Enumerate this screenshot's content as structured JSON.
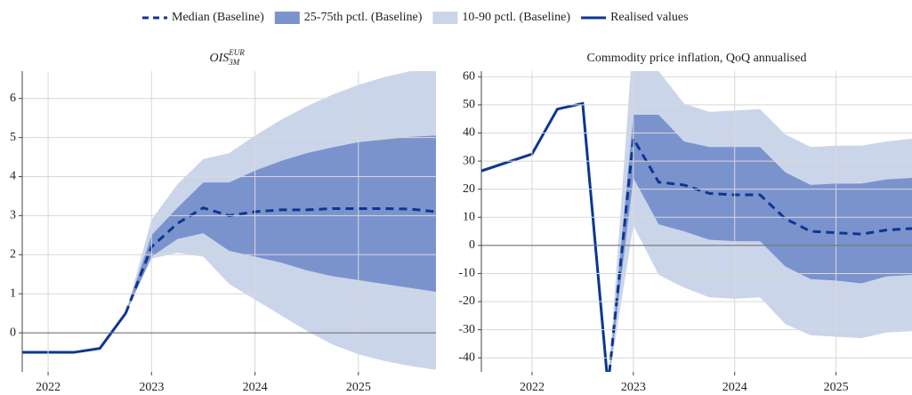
{
  "legend": {
    "position": "top"
  },
  "chart_data": [
    {
      "type": "fan",
      "title_main": "OIS",
      "title_sup": "EUR",
      "title_sub": "3M",
      "xlim": [
        2021.75,
        2025.75
      ],
      "ylim": [
        -1,
        6.7
      ],
      "xticks": [
        2022,
        2023,
        2024,
        2025
      ],
      "yticks": [
        0,
        1,
        2,
        3,
        4,
        5,
        6
      ],
      "grid": true,
      "series": [
        {
          "name": "Median (Baseline)",
          "kind": "dashed",
          "color": "#0d3692",
          "x": [
            2022.75,
            2023,
            2023.25,
            2023.5,
            2023.75,
            2024,
            2024.25,
            2024.5,
            2024.75,
            2025,
            2025.25,
            2025.5,
            2025.75
          ],
          "values": [
            0.5,
            2.2,
            2.8,
            3.2,
            3.0,
            3.1,
            3.15,
            3.15,
            3.18,
            3.18,
            3.18,
            3.17,
            3.1
          ]
        },
        {
          "name": "25-75th pctl. (Baseline)",
          "kind": "band",
          "color": "#7b93cd",
          "x": [
            2022.75,
            2023,
            2023.25,
            2023.5,
            2023.75,
            2024,
            2024.25,
            2024.5,
            2024.75,
            2025,
            2025.25,
            2025.5,
            2025.75
          ],
          "lower": [
            0.5,
            1.95,
            2.4,
            2.55,
            2.1,
            1.95,
            1.8,
            1.6,
            1.45,
            1.35,
            1.25,
            1.15,
            1.05
          ],
          "upper": [
            0.5,
            2.5,
            3.2,
            3.85,
            3.85,
            4.15,
            4.4,
            4.6,
            4.75,
            4.88,
            4.95,
            5.02,
            5.05
          ]
        },
        {
          "name": "10-90 pctl. (Baseline)",
          "kind": "band",
          "color": "#cbd5ea",
          "x": [
            2022.75,
            2023,
            2023.25,
            2023.5,
            2023.75,
            2024,
            2024.25,
            2024.5,
            2024.75,
            2025,
            2025.25,
            2025.5,
            2025.75
          ],
          "lower": [
            0.5,
            1.9,
            2.05,
            1.95,
            1.25,
            0.85,
            0.45,
            0.05,
            -0.3,
            -0.55,
            -0.72,
            -0.85,
            -0.95
          ],
          "upper": [
            0.5,
            2.9,
            3.8,
            4.45,
            4.6,
            5.05,
            5.45,
            5.8,
            6.1,
            6.35,
            6.55,
            6.7,
            6.75
          ]
        },
        {
          "name": "Realised values",
          "kind": "solid",
          "color": "#0d3692",
          "x": [
            2021.75,
            2022,
            2022.25,
            2022.5,
            2022.75
          ],
          "values": [
            -0.5,
            -0.5,
            -0.5,
            -0.4,
            0.5
          ]
        }
      ]
    },
    {
      "type": "fan",
      "title": "Commodity price inflation, QoQ annualised",
      "xlim": [
        2021.5,
        2025.75
      ],
      "ylim": [
        -45,
        62
      ],
      "xticks": [
        2022,
        2023,
        2024,
        2025
      ],
      "yticks": [
        -40,
        -30,
        -20,
        -10,
        0,
        10,
        20,
        30,
        40,
        50,
        60
      ],
      "grid": true,
      "series": [
        {
          "name": "Median (Baseline)",
          "kind": "dashed",
          "color": "#0d3692",
          "x": [
            2022.75,
            2023,
            2023.25,
            2023.5,
            2023.75,
            2024,
            2024.25,
            2024.5,
            2024.75,
            2025,
            2025.25,
            2025.5,
            2025.75
          ],
          "values": [
            -50,
            38,
            22.5,
            21.5,
            18.5,
            18,
            18,
            9.5,
            5,
            4.5,
            4,
            5.5,
            6
          ]
        },
        {
          "name": "25-75th pctl. (Baseline)",
          "kind": "band",
          "color": "#7b93cd",
          "x": [
            2022.75,
            2023,
            2023.25,
            2023.5,
            2023.75,
            2024,
            2024.25,
            2024.5,
            2024.75,
            2025,
            2025.25,
            2025.5,
            2025.75
          ],
          "lower": [
            -50,
            24,
            7.5,
            5,
            2,
            1.5,
            1.5,
            -7.5,
            -12,
            -12.5,
            -13.5,
            -11,
            -10.5
          ],
          "upper": [
            -50,
            46.5,
            46.5,
            37,
            35,
            35,
            35,
            26,
            21.5,
            22,
            22,
            23.5,
            24
          ]
        },
        {
          "name": "10-90 pctl. (Baseline)",
          "kind": "band",
          "color": "#cbd5ea",
          "x": [
            2022.75,
            2023,
            2023.25,
            2023.5,
            2023.75,
            2024,
            2024.25,
            2024.5,
            2024.75,
            2025,
            2025.25,
            2025.5,
            2025.75
          ],
          "lower": [
            -50,
            7,
            -10.5,
            -15,
            -18.5,
            -19,
            -18.5,
            -28,
            -32,
            -32.5,
            -33,
            -31,
            -30.5
          ],
          "upper": [
            -50,
            75,
            62,
            50.5,
            47.5,
            48,
            48.5,
            39.5,
            35,
            35.5,
            35.5,
            37,
            38
          ]
        },
        {
          "name": "Realised values",
          "kind": "solid",
          "color": "#0d3692",
          "x": [
            2021.5,
            2022,
            2022.25,
            2022.5,
            2022.75
          ],
          "values": [
            26.5,
            32.5,
            48.5,
            50.5,
            -50
          ]
        }
      ]
    }
  ]
}
